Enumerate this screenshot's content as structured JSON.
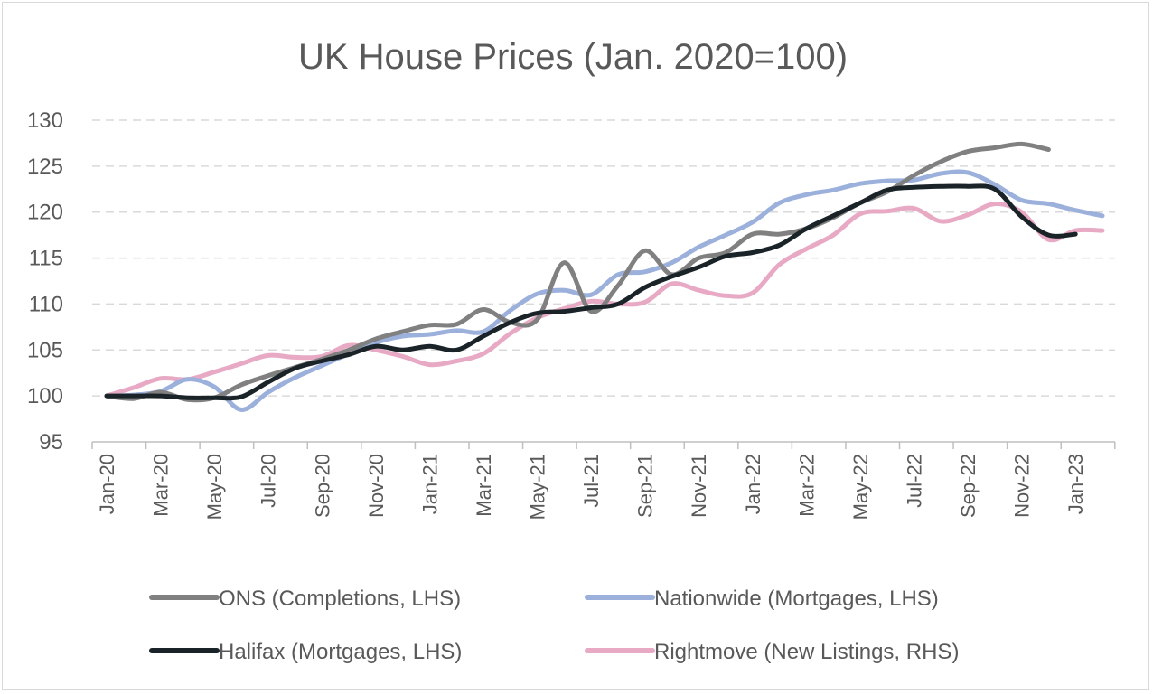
{
  "chart_data": {
    "type": "line",
    "title": "UK House Prices (Jan. 2020=100)",
    "ylim": [
      95,
      130
    ],
    "yticks": [
      95,
      100,
      105,
      110,
      115,
      120,
      125,
      130
    ],
    "grid": true,
    "legend_position": "bottom",
    "x": [
      "Jan-20",
      "Feb-20",
      "Mar-20",
      "Apr-20",
      "May-20",
      "Jun-20",
      "Jul-20",
      "Aug-20",
      "Sep-20",
      "Oct-20",
      "Nov-20",
      "Dec-20",
      "Jan-21",
      "Feb-21",
      "Mar-21",
      "Apr-21",
      "May-21",
      "Jun-21",
      "Jul-21",
      "Aug-21",
      "Sep-21",
      "Oct-21",
      "Nov-21",
      "Dec-21",
      "Jan-22",
      "Feb-22",
      "Mar-22",
      "Apr-22",
      "May-22",
      "Jun-22",
      "Jul-22",
      "Aug-22",
      "Sep-22",
      "Oct-22",
      "Nov-22",
      "Dec-22",
      "Jan-23",
      "Feb-23"
    ],
    "x_tick_labels": [
      "Jan-20",
      "Mar-20",
      "May-20",
      "Jul-20",
      "Sep-20",
      "Nov-20",
      "Jan-21",
      "Mar-21",
      "May-21",
      "Jul-21",
      "Sep-21",
      "Nov-21",
      "Jan-22",
      "Mar-22",
      "May-22",
      "Jul-22",
      "Sep-22",
      "Nov-22",
      "Jan-23"
    ],
    "series": [
      {
        "name": "ONS (Completions, LHS)",
        "color": "#808080",
        "values": [
          100,
          99.7,
          100.4,
          99.6,
          99.8,
          101.2,
          102.2,
          103.1,
          104.0,
          105.0,
          106.2,
          107.0,
          107.7,
          107.8,
          109.4,
          108.0,
          108.3,
          114.5,
          109.2,
          112.0,
          115.8,
          113.2,
          115.0,
          115.6,
          117.6,
          117.6,
          118.2,
          119.4,
          121.0,
          122.2,
          124.0,
          125.5,
          126.6,
          127.0,
          127.4,
          126.8,
          null,
          null
        ]
      },
      {
        "name": "Nationwide (Mortgages, LHS)",
        "color": "#9cb0dc",
        "values": [
          100,
          100.1,
          100.5,
          101.8,
          101.0,
          98.5,
          100.4,
          102.0,
          103.3,
          104.6,
          105.8,
          106.5,
          106.7,
          107.1,
          107.0,
          109.3,
          111.1,
          111.5,
          111.0,
          113.2,
          113.5,
          114.5,
          116.2,
          117.5,
          118.9,
          121.0,
          121.9,
          122.4,
          123.1,
          123.4,
          123.5,
          124.2,
          124.3,
          123.0,
          121.3,
          120.9,
          120.2,
          119.6
        ]
      },
      {
        "name": "Halifax (Mortgages, LHS)",
        "color": "#1a2428",
        "values": [
          100,
          100,
          100,
          99.8,
          99.8,
          99.9,
          101.5,
          103.0,
          103.8,
          104.5,
          105.4,
          105.0,
          105.4,
          105.0,
          106.5,
          108.0,
          109.0,
          109.2,
          109.6,
          110.0,
          111.8,
          113.0,
          114.0,
          115.2,
          115.6,
          116.4,
          118.2,
          119.6,
          121.0,
          122.4,
          122.7,
          122.8,
          122.8,
          122.5,
          119.5,
          117.5,
          117.6,
          null
        ]
      },
      {
        "name": "Rightmove (New Listings, RHS)",
        "color": "#e8a9c4",
        "values": [
          100,
          100.9,
          101.9,
          101.8,
          102.6,
          103.5,
          104.4,
          104.2,
          104.3,
          105.5,
          105.0,
          104.3,
          103.4,
          103.8,
          104.6,
          106.8,
          108.5,
          109.5,
          110.3,
          110.0,
          110.2,
          112.2,
          111.5,
          110.9,
          111.2,
          114.3,
          116.0,
          117.5,
          119.8,
          120.1,
          120.4,
          119.0,
          119.7,
          120.9,
          120.0,
          117.0,
          118.0,
          118.0
        ]
      }
    ]
  }
}
